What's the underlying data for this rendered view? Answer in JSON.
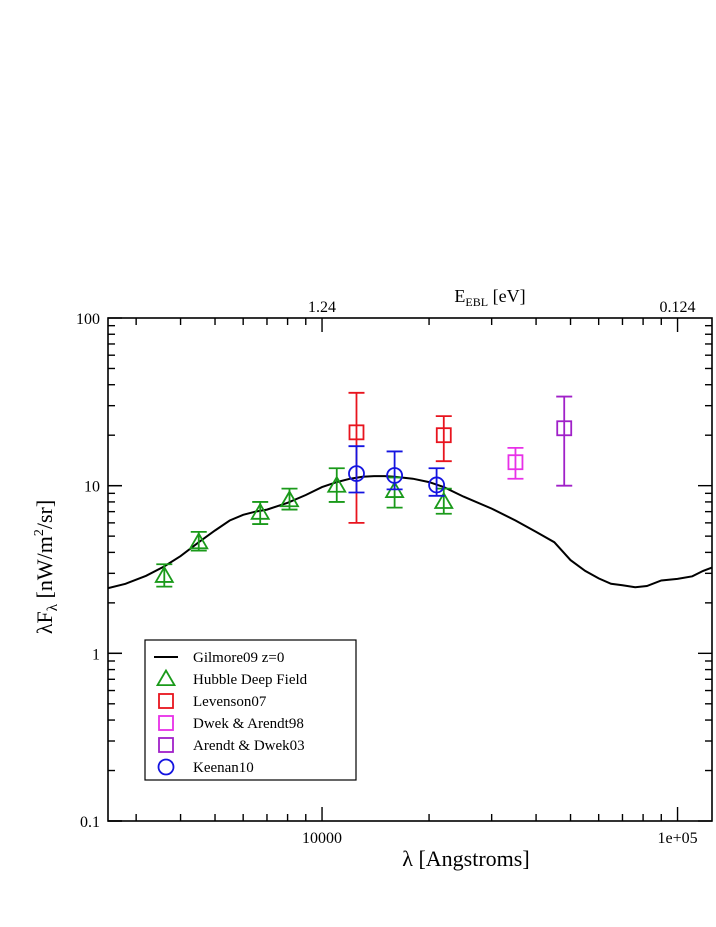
{
  "chart_data": {
    "type": "scatter",
    "title": "",
    "xlabel": "λ [Angstroms]",
    "ylabel": "λF",
    "ylabel_sub": "λ",
    "ylabel_units": " [nW/m",
    "ylabel_sup": "2",
    "ylabel_units_end": "/sr]",
    "top_axis_label": "E",
    "top_axis_label_sub": "EBL",
    "top_axis_label_units": " [eV]",
    "xscale": "log",
    "yscale": "log",
    "xlim": [
      2500,
      125000
    ],
    "ylim": [
      0.1,
      100
    ],
    "x_ticks": [
      {
        "value": 10000,
        "label": "10000"
      },
      {
        "value": 100000,
        "label": "1e+05"
      }
    ],
    "y_ticks": [
      {
        "value": 0.1,
        "label": "0.1"
      },
      {
        "value": 1,
        "label": "1"
      },
      {
        "value": 10,
        "label": "10"
      },
      {
        "value": 100,
        "label": "100"
      }
    ],
    "top_ticks": [
      {
        "value": 10000,
        "label": "1.24"
      },
      {
        "value": 100000,
        "label": "0.124"
      }
    ],
    "model": {
      "name": "Gilmore09 z=0",
      "color": "#000000",
      "points": [
        [
          2500,
          2.45
        ],
        [
          2800,
          2.6
        ],
        [
          3200,
          2.9
        ],
        [
          3600,
          3.3
        ],
        [
          4000,
          3.8
        ],
        [
          4500,
          4.6
        ],
        [
          5000,
          5.4
        ],
        [
          5500,
          6.2
        ],
        [
          6000,
          6.7
        ],
        [
          6500,
          7.0
        ],
        [
          7000,
          7.2
        ],
        [
          8000,
          7.9
        ],
        [
          9000,
          8.8
        ],
        [
          10000,
          9.8
        ],
        [
          11000,
          10.5
        ],
        [
          12000,
          11.0
        ],
        [
          13000,
          11.3
        ],
        [
          14000,
          11.4
        ],
        [
          15000,
          11.4
        ],
        [
          16000,
          11.3
        ],
        [
          18000,
          11.0
        ],
        [
          20000,
          10.5
        ],
        [
          22000,
          9.8
        ],
        [
          25000,
          8.6
        ],
        [
          30000,
          7.3
        ],
        [
          35000,
          6.2
        ],
        [
          40000,
          5.3
        ],
        [
          45000,
          4.6
        ],
        [
          50000,
          3.6
        ],
        [
          55000,
          3.1
        ],
        [
          60000,
          2.8
        ],
        [
          65000,
          2.6
        ],
        [
          70000,
          2.55
        ],
        [
          76000,
          2.48
        ],
        [
          82000,
          2.52
        ],
        [
          90000,
          2.72
        ],
        [
          100000,
          2.78
        ],
        [
          110000,
          2.88
        ],
        [
          118000,
          3.1
        ],
        [
          125000,
          3.25
        ]
      ]
    },
    "series": [
      {
        "name": "Hubble Deep Field",
        "marker": "triangle",
        "color": "#1a9a1a",
        "points": [
          {
            "x": 3600,
            "y": 2.9,
            "ylo": 2.5,
            "yhi": 3.4
          },
          {
            "x": 4500,
            "y": 4.6,
            "ylo": 4.1,
            "yhi": 5.3
          },
          {
            "x": 6700,
            "y": 6.9,
            "ylo": 5.9,
            "yhi": 8.0
          },
          {
            "x": 8100,
            "y": 8.2,
            "ylo": 7.2,
            "yhi": 9.6
          },
          {
            "x": 11000,
            "y": 10.0,
            "ylo": 8.0,
            "yhi": 12.7
          },
          {
            "x": 16000,
            "y": 9.3,
            "ylo": 7.4,
            "yhi": 11.2
          },
          {
            "x": 22000,
            "y": 8.0,
            "ylo": 6.8,
            "yhi": 9.6
          }
        ]
      },
      {
        "name": "Levenson07",
        "marker": "square",
        "color": "#e8141e",
        "points": [
          {
            "x": 12500,
            "y": 20.8,
            "ylo": 6.0,
            "yhi": 35.8
          },
          {
            "x": 22000,
            "y": 20.0,
            "ylo": 14.0,
            "yhi": 26.0
          }
        ]
      },
      {
        "name": "Dwek & Arendt98",
        "marker": "square",
        "color": "#e830e8",
        "points": [
          {
            "x": 35000,
            "y": 13.8,
            "ylo": 11.0,
            "yhi": 16.8
          }
        ]
      },
      {
        "name": "Arendt & Dwek03",
        "marker": "square",
        "color": "#a020c8",
        "points": [
          {
            "x": 48000,
            "y": 22.0,
            "ylo": 10.0,
            "yhi": 34.0
          }
        ]
      },
      {
        "name": "Keenan10",
        "marker": "circle",
        "color": "#1414e0",
        "points": [
          {
            "x": 12500,
            "y": 11.8,
            "ylo": 9.1,
            "yhi": 17.2
          },
          {
            "x": 16000,
            "y": 11.5,
            "ylo": 9.5,
            "yhi": 16.0
          },
          {
            "x": 21000,
            "y": 10.1,
            "ylo": 8.7,
            "yhi": 12.7
          }
        ]
      }
    ],
    "legend_position": "bottom-left"
  }
}
